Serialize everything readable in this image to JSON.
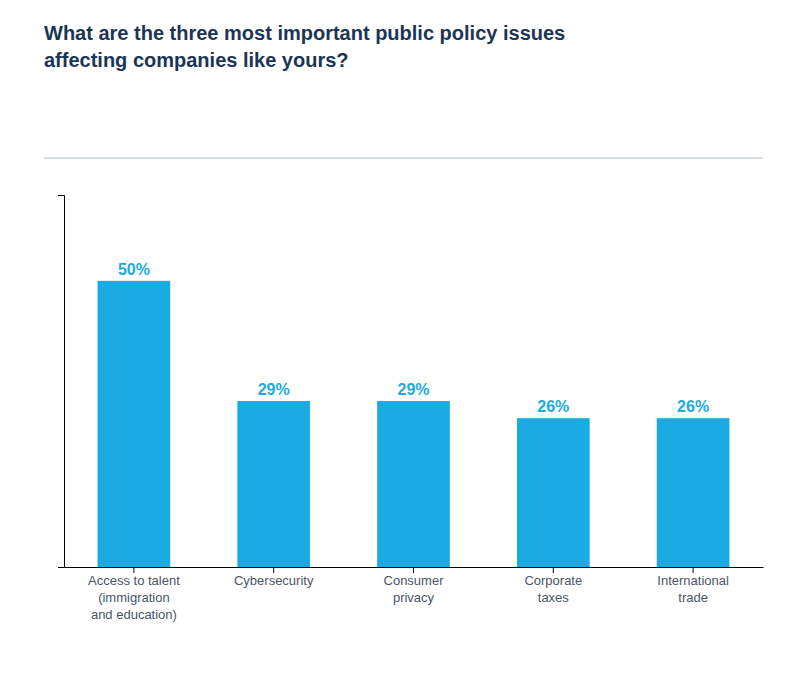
{
  "chart_data": {
    "type": "bar",
    "title": "What are the three most important public policy issues\naffecting companies like yours?",
    "categories": [
      "Access to talent\n(immigration\nand education)",
      "Cybersecurity",
      "Consumer\nprivacy",
      "Corporate\ntaxes",
      "International\ntrade"
    ],
    "values": [
      50,
      29,
      29,
      26,
      26
    ],
    "value_labels": [
      "50%",
      "29%",
      "29%",
      "26%",
      "26%"
    ],
    "color": "#1AABE3",
    "ylim": [
      0,
      65
    ],
    "data_labels": true,
    "tick_labels": "x"
  }
}
